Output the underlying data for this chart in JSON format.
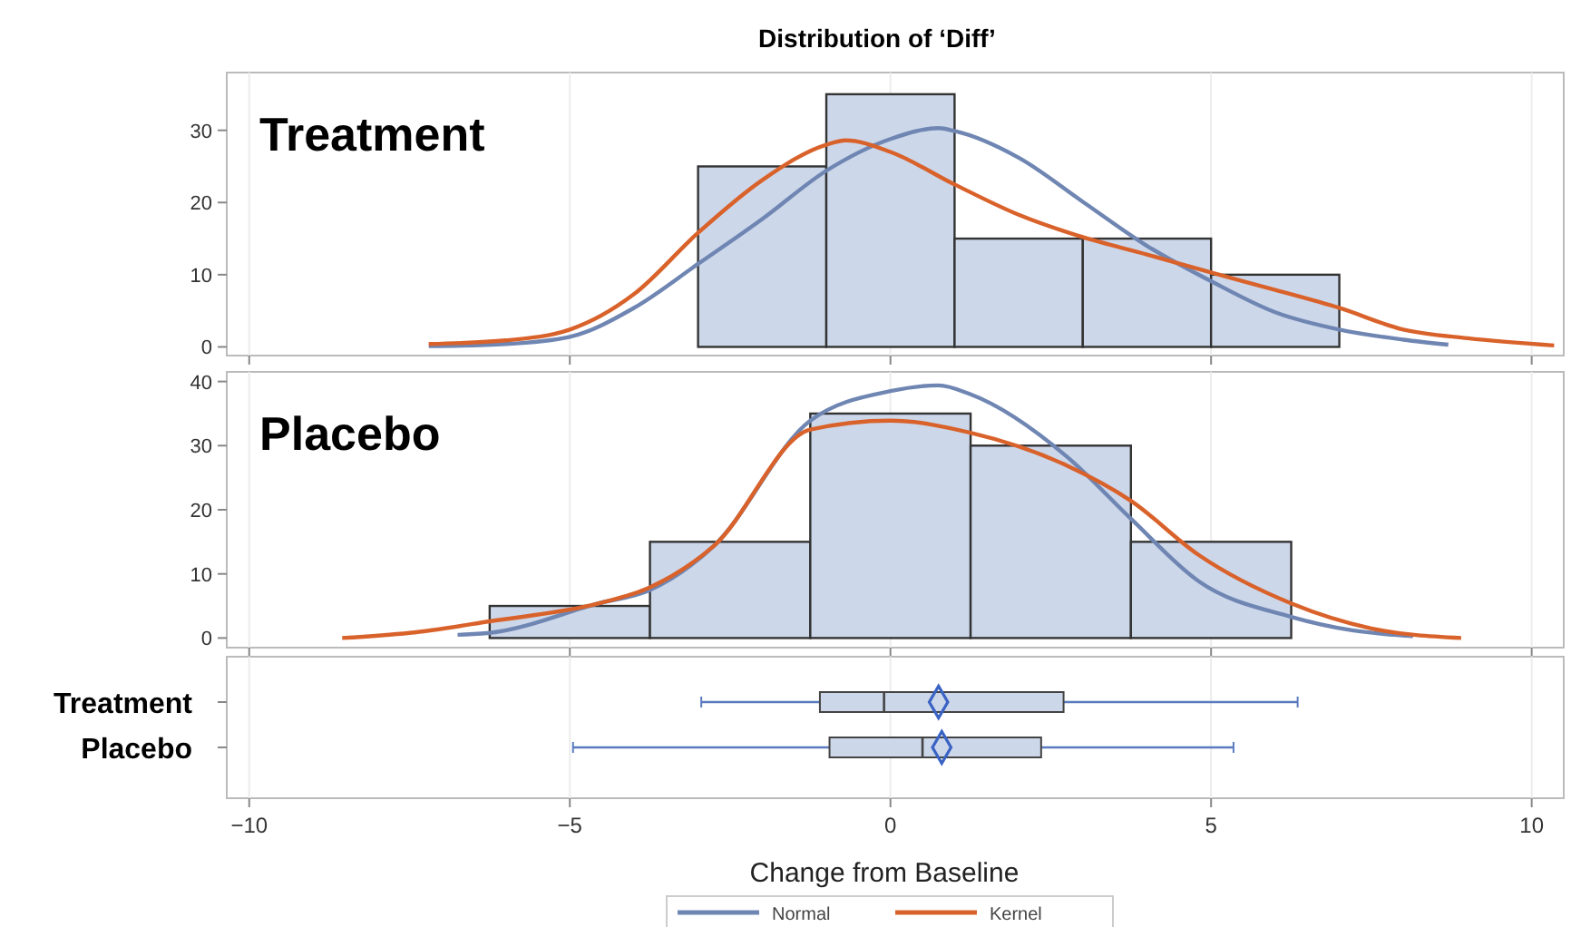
{
  "chart_data": [
    {
      "type": "histogram",
      "title": "Distribution of ‘Diff’",
      "annotations": [
        "Treatment"
      ],
      "xlim": [
        -10.35,
        10.5
      ],
      "xticks": [
        -10,
        -5,
        0,
        5,
        10
      ],
      "ylim": [
        -1.2,
        38
      ],
      "yticks": [
        0,
        10,
        20,
        30
      ],
      "tick_labels": "y",
      "grid": "x",
      "legend": "bottom",
      "series": [
        {
          "type": "histogram",
          "color": "#cdd7ea",
          "bins": [
            -3,
            -1,
            1,
            3,
            5,
            7
          ],
          "values": [
            25,
            35,
            15,
            15,
            10
          ]
        },
        {
          "type": "line",
          "name": "Normal",
          "color": "#6f86b3",
          "x": [
            -7.2,
            -6,
            -5,
            -4,
            -3,
            -2,
            -1,
            0,
            0.75,
            1,
            2,
            3,
            4,
            5,
            6,
            7,
            8,
            8.7
          ],
          "values": [
            0.1,
            0.4,
            1.4,
            5.4,
            11.5,
            17.7,
            24.4,
            28.8,
            30.3,
            29.9,
            26.2,
            20.1,
            14,
            9.1,
            4.8,
            2.4,
            1,
            0.3
          ]
        },
        {
          "type": "line",
          "name": "Kernel",
          "color": "#d9622b",
          "x": [
            -7.2,
            -6,
            -5,
            -4,
            -3,
            -2,
            -1,
            -0.7,
            0,
            1,
            2,
            3,
            4,
            5,
            6,
            7,
            8,
            9,
            10.35
          ],
          "values": [
            0.4,
            0.9,
            2.4,
            7.3,
            15.8,
            23.1,
            28,
            28.6,
            27,
            22.5,
            18.3,
            15.2,
            12.8,
            10.3,
            7.9,
            5.4,
            2.4,
            1.2,
            0.2
          ]
        }
      ]
    },
    {
      "type": "histogram",
      "annotations": [
        "Placebo"
      ],
      "xlim": [
        -10.35,
        10.5
      ],
      "xticks": [
        -10,
        -5,
        0,
        5,
        10
      ],
      "ylim": [
        -1.5,
        41.5
      ],
      "yticks": [
        0,
        10,
        20,
        30,
        40
      ],
      "tick_labels": "y",
      "grid": "x",
      "series": [
        {
          "type": "histogram",
          "color": "#cdd7ea",
          "bins": [
            -6.25,
            -3.75,
            -1.25,
            1.25,
            3.75,
            6.25
          ],
          "values": [
            5,
            15,
            35,
            30,
            15
          ]
        },
        {
          "type": "line",
          "color": "#6f86b3",
          "x": [
            -6.75,
            -6.25,
            -4.55,
            -3.75,
            -2.75,
            -1.25,
            0,
            0.75,
            1.25,
            2.75,
            3.75,
            4.8,
            6.25,
            7.2,
            8.15
          ],
          "values": [
            0.5,
            0.8,
            5.4,
            7.5,
            14.4,
            33.9,
            38.5,
            39.4,
            38,
            28.3,
            18.6,
            8.9,
            3.3,
            1.2,
            0.3
          ]
        },
        {
          "type": "line",
          "color": "#d9622b",
          "x": [
            -8.55,
            -7.5,
            -6.25,
            -4.55,
            -3.75,
            -2.75,
            -1.25,
            0,
            1.25,
            2.75,
            3.75,
            4.8,
            6.25,
            7.5,
            8.9
          ],
          "values": [
            0,
            0.8,
            2.6,
            5.4,
            7.9,
            14.4,
            32.5,
            33.9,
            32,
            26.9,
            21.4,
            13,
            5.4,
            1.5,
            0
          ]
        }
      ]
    },
    {
      "type": "box",
      "orientation": "horizontal",
      "categories": [
        "Treatment",
        "Placebo"
      ],
      "xlabel": "Change from Baseline",
      "xlim": [
        -10.35,
        10.5
      ],
      "xticks": [
        -10,
        -5,
        0,
        5,
        10
      ],
      "grid": "x",
      "color": "#cdd7ea",
      "marker": "diamond",
      "boxes": [
        {
          "low": -2.95,
          "q1": -1.1,
          "median": -0.1,
          "q3": 2.7,
          "high": 6.35,
          "mean": 0.75
        },
        {
          "low": -4.95,
          "q1": -0.95,
          "median": 0.5,
          "q3": 2.35,
          "high": 5.35,
          "mean": 0.8
        }
      ]
    }
  ]
}
